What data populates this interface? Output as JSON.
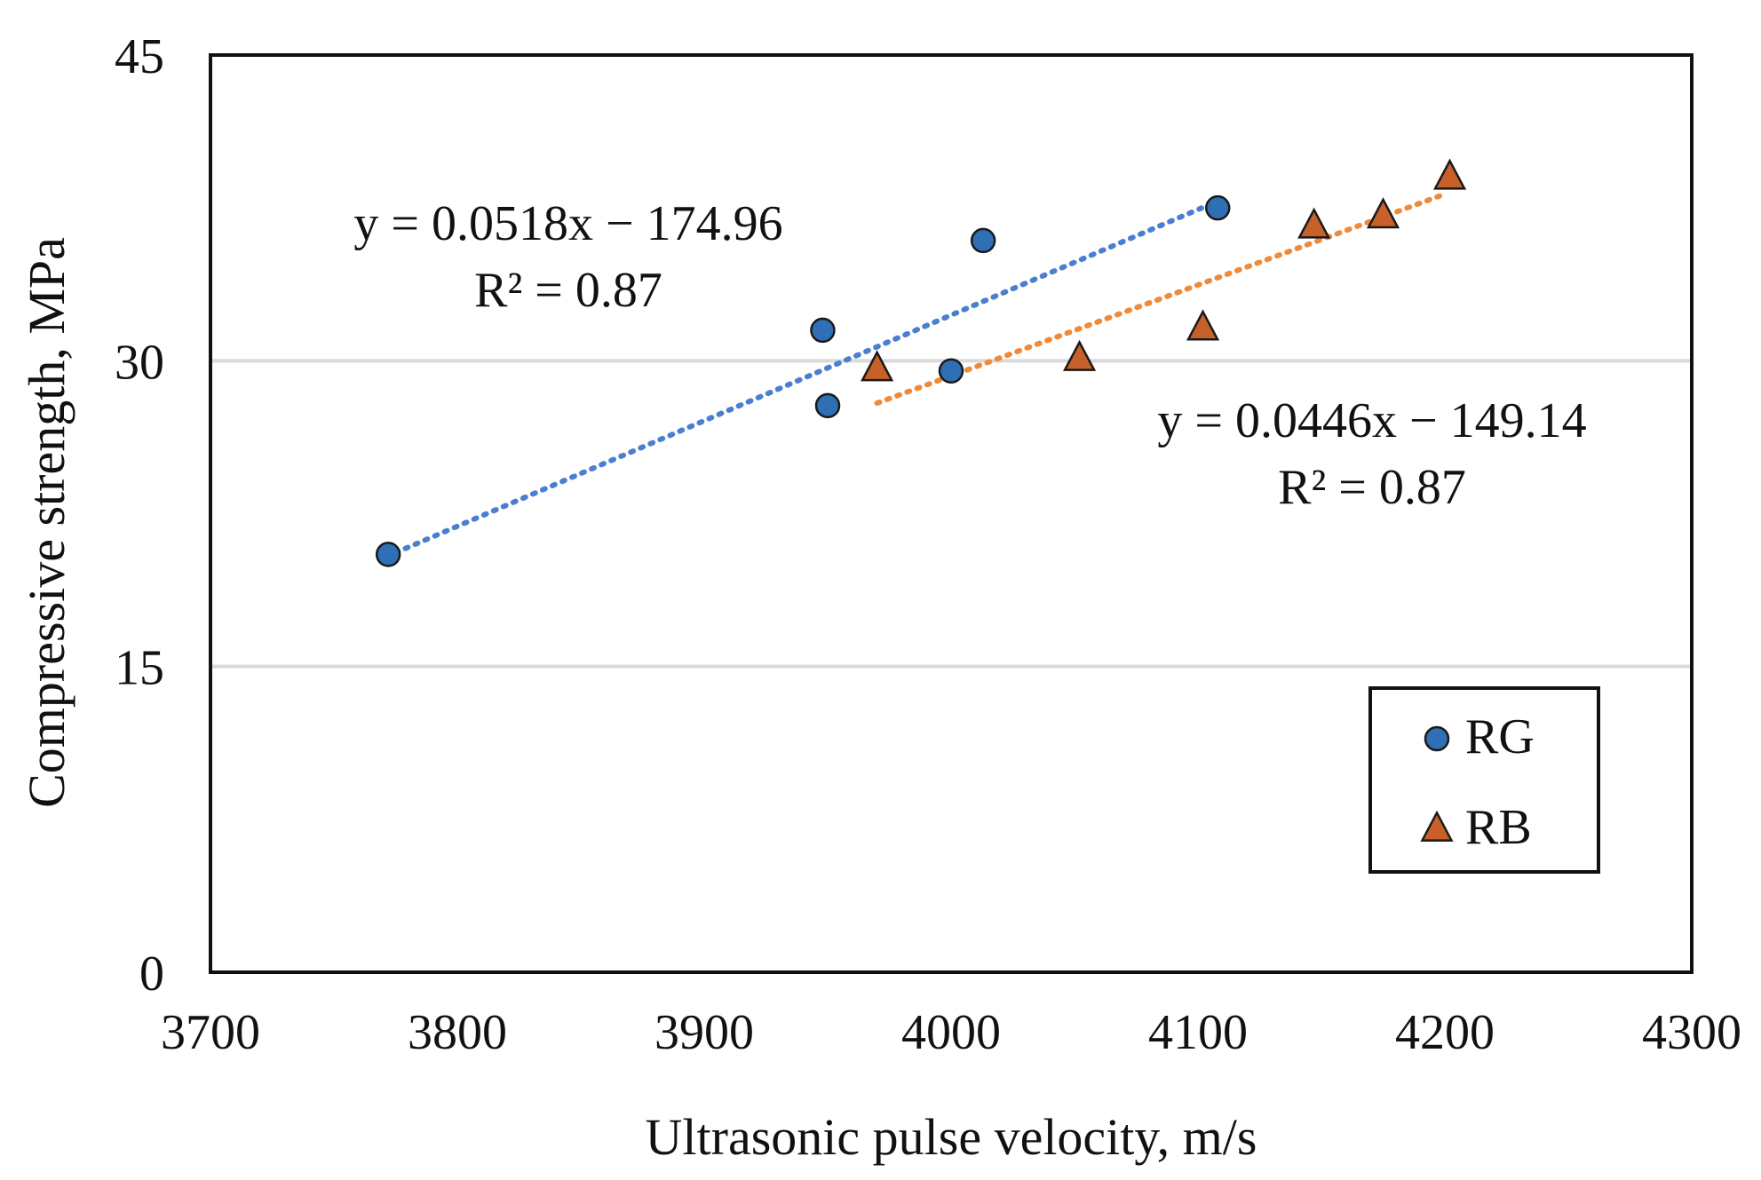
{
  "chart_data": {
    "type": "scatter",
    "title": "",
    "xlabel": "Ultrasonic pulse velocity, m/s",
    "ylabel": "Compressive strength, MPa",
    "xlim": [
      3700,
      4300
    ],
    "ylim": [
      0,
      45
    ],
    "xticks": [
      3700,
      3800,
      3900,
      4000,
      4100,
      4200,
      4300
    ],
    "yticks": [
      0,
      15,
      30,
      45
    ],
    "grid": "horizontal",
    "legend_position": "bottom-right",
    "series": [
      {
        "name": "RG",
        "marker": "circle",
        "color": "#2e6fb5",
        "x": [
          3772,
          3948,
          3950,
          4000,
          4013,
          4108
        ],
        "y": [
          20.5,
          31.5,
          27.8,
          29.5,
          35.9,
          37.5
        ],
        "trendline": {
          "x_range": [
            3775,
            4105
          ],
          "slope": 0.0518,
          "intercept": -174.96,
          "color": "#4a7fd0",
          "equation": "y = 0.0518x − 174.96",
          "r2": "R² = 0.87"
        }
      },
      {
        "name": "RB",
        "marker": "triangle",
        "color": "#c8602a",
        "x": [
          3970,
          4052,
          4102,
          4147,
          4175,
          4202
        ],
        "y": [
          29.6,
          30.1,
          31.6,
          36.6,
          37.1,
          39.0
        ],
        "trendline": {
          "x_range": [
            3970,
            4200
          ],
          "slope": 0.0446,
          "intercept": -149.14,
          "color": "#ee8a3a",
          "equation": "y = 0.0446x − 149.14",
          "r2": "R² = 0.87"
        }
      }
    ]
  }
}
